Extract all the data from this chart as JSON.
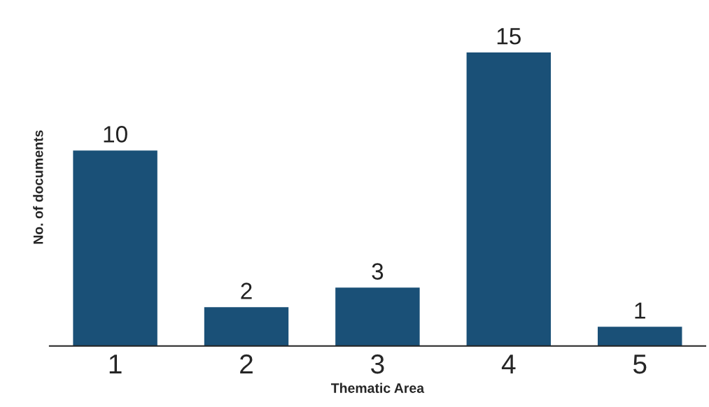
{
  "chart_data": {
    "type": "bar",
    "xlabel": "Thematic Area",
    "ylabel": "No. of documents",
    "categories": [
      "1",
      "2",
      "3",
      "4",
      "5"
    ],
    "values": [
      10,
      2,
      3,
      15,
      1
    ],
    "color": "#1a5077",
    "data_labels": true,
    "grid": false,
    "legend": false
  }
}
